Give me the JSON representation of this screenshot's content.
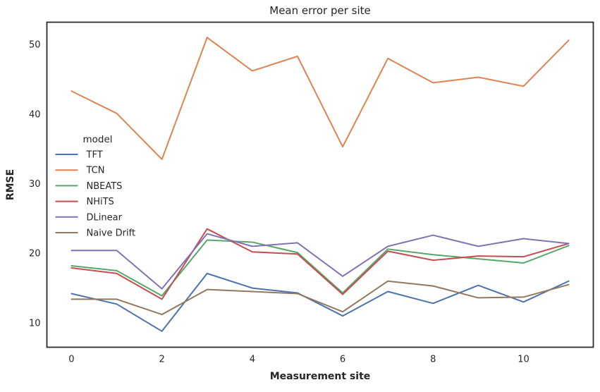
{
  "chart_data": {
    "type": "line",
    "title": "Mean error per site",
    "xlabel": "Measurement site",
    "ylabel": "RMSE",
    "x": [
      0,
      1,
      2,
      3,
      4,
      5,
      6,
      7,
      8,
      9,
      10,
      11
    ],
    "series": [
      {
        "name": "TFT",
        "color": "#4C72B0",
        "values": [
          14.2,
          12.7,
          8.8,
          17.1,
          15.0,
          14.3,
          11.0,
          14.5,
          12.8,
          15.4,
          13.0,
          16.0
        ]
      },
      {
        "name": "TCN",
        "color": "#DD8452",
        "values": [
          43.3,
          40.1,
          33.5,
          51.0,
          46.2,
          48.3,
          35.3,
          48.0,
          44.5,
          45.3,
          44.0,
          50.6
        ]
      },
      {
        "name": "NBEATS",
        "color": "#55A868",
        "values": [
          18.2,
          17.5,
          13.9,
          21.9,
          21.6,
          20.1,
          14.3,
          20.6,
          19.8,
          19.2,
          18.6,
          21.1
        ]
      },
      {
        "name": "NHiTS",
        "color": "#C44E52",
        "values": [
          17.9,
          17.1,
          13.4,
          23.5,
          20.2,
          19.9,
          14.1,
          20.3,
          19.0,
          19.6,
          19.5,
          21.4
        ]
      },
      {
        "name": "DLinear",
        "color": "#8172B3",
        "values": [
          20.4,
          20.4,
          14.9,
          22.8,
          21.0,
          21.5,
          16.7,
          21.0,
          22.6,
          21.0,
          22.1,
          21.4
        ]
      },
      {
        "name": "Naive Drift",
        "color": "#937860",
        "values": [
          13.4,
          13.4,
          11.2,
          14.8,
          14.5,
          14.2,
          11.6,
          16.0,
          15.3,
          13.6,
          13.7,
          15.5
        ]
      }
    ],
    "legend": {
      "title": "model",
      "position": "upper-left-inside",
      "frame": false
    },
    "xticks": [
      "0",
      "2",
      "4",
      "6",
      "8",
      "10"
    ],
    "xtick_values": [
      0,
      2,
      4,
      6,
      8,
      10
    ],
    "yticks": [
      "10",
      "20",
      "30",
      "40",
      "50"
    ],
    "ytick_values": [
      10,
      20,
      30,
      40,
      50
    ],
    "xlim": [
      -0.545,
      11.545
    ],
    "ylim": [
      6.5,
      53.2
    ],
    "grid": false,
    "text_color": "#262626",
    "spine_color": "#2B2B2B",
    "background": "#FFFFFF"
  }
}
